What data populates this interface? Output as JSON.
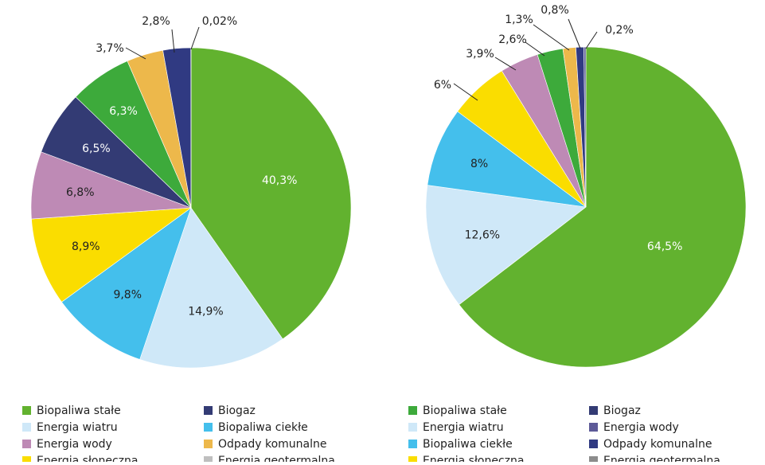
{
  "colors": {
    "biopaliwa_stale_1": "#62B22F",
    "energia_wiatru": "#CFE8F8",
    "biopaliwa_ciekle": "#44BFEC",
    "energia_sloneczna": "#FADD00",
    "energia_wody_1": "#BE8AB5",
    "biogaz_1": "#333B74",
    "biopaliwa_stale_small": "#3DAA3B",
    "odpady_komunalne": "#EDB84B",
    "biogaz_2": "#303A82",
    "energia_geotermalna": "#BFBFBF",
    "energia_wody_2": "#5D5A98"
  },
  "chart_data": [
    {
      "type": "pie",
      "slices": [
        {
          "label": "40,3%",
          "value": 40.3,
          "color": "#62B22F"
        },
        {
          "label": "14,9%",
          "value": 14.9,
          "color": "#CFE8F8"
        },
        {
          "label": "9,8%",
          "value": 9.8,
          "color": "#44BFEC"
        },
        {
          "label": "8,9%",
          "value": 8.9,
          "color": "#FADD00"
        },
        {
          "label": "6,8%",
          "value": 6.8,
          "color": "#BE8AB5"
        },
        {
          "label": "6,5%",
          "value": 6.5,
          "color": "#333B74"
        },
        {
          "label": "6,3%",
          "value": 6.3,
          "color": "#3DAA3B"
        },
        {
          "label": "3,7%",
          "value": 3.7,
          "color": "#EDB84B"
        },
        {
          "label": "2,8%",
          "value": 2.8,
          "color": "#303A82"
        },
        {
          "label": "0,02%",
          "value": 0.02,
          "color": "#BFBFBF"
        }
      ],
      "legend": [
        {
          "label": "Biopaliwa stałe",
          "color": "#62B22F"
        },
        {
          "label": "Biogaz",
          "color": "#333B74"
        },
        {
          "label": "Energia wiatru",
          "color": "#CFE8F8"
        },
        {
          "label": "Biopaliwa ciekłe",
          "color": "#44BFEC"
        },
        {
          "label": "Energia wody",
          "color": "#BE8AB5"
        },
        {
          "label": "Odpady komunalne",
          "color": "#EDB84B"
        },
        {
          "label": "Energia słoneczna",
          "color": "#FADD00"
        },
        {
          "label": "Energia geotermalna",
          "color": "#BFBFBF"
        }
      ]
    },
    {
      "type": "pie",
      "slices": [
        {
          "label": "64,5%",
          "value": 64.5,
          "color": "#62B22F"
        },
        {
          "label": "12,6%",
          "value": 12.6,
          "color": "#CFE8F8"
        },
        {
          "label": "8%",
          "value": 8.0,
          "color": "#44BFEC"
        },
        {
          "label": "6%",
          "value": 6.0,
          "color": "#FADD00"
        },
        {
          "label": "3,9%",
          "value": 3.9,
          "color": "#BE8AB5"
        },
        {
          "label": "2,6%",
          "value": 2.6,
          "color": "#3DAA3B"
        },
        {
          "label": "1,3%",
          "value": 1.3,
          "color": "#EDB84B"
        },
        {
          "label": "0,8%",
          "value": 0.8,
          "color": "#303A82"
        },
        {
          "label": "0,2%",
          "value": 0.2,
          "color": "#5D5A98"
        }
      ],
      "legend": [
        {
          "label": "Biopaliwa stałe",
          "color": "#3DAA3B"
        },
        {
          "label": "Biogaz",
          "color": "#333B74"
        },
        {
          "label": "Energia wiatru",
          "color": "#CFE8F8"
        },
        {
          "label": "Energia wody",
          "color": "#5D5A98"
        },
        {
          "label": "Biopaliwa ciekłe",
          "color": "#44BFEC"
        },
        {
          "label": "Odpady komunalne",
          "color": "#303A82"
        },
        {
          "label": "Energia słoneczna",
          "color": "#FADD00"
        },
        {
          "label": "Energia geotermalna",
          "color": "#8C8C8C"
        }
      ]
    }
  ]
}
